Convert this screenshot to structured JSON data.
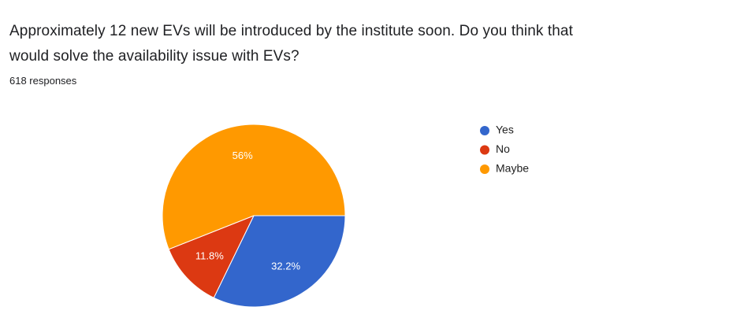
{
  "chart_data": {
    "type": "pie",
    "title": "Approximately 12 new EVs will be introduced by the institute soon. Do you think that would solve the availability issue with EVs?",
    "subtitle": "618 responses",
    "categories": [
      "Yes",
      "No",
      "Maybe"
    ],
    "values": [
      32.2,
      11.8,
      56
    ],
    "value_labels": [
      "32.2%",
      "11.8%",
      "56%"
    ],
    "colors": [
      "#3366cc",
      "#dc3912",
      "#ff9900"
    ],
    "legend": "right"
  }
}
